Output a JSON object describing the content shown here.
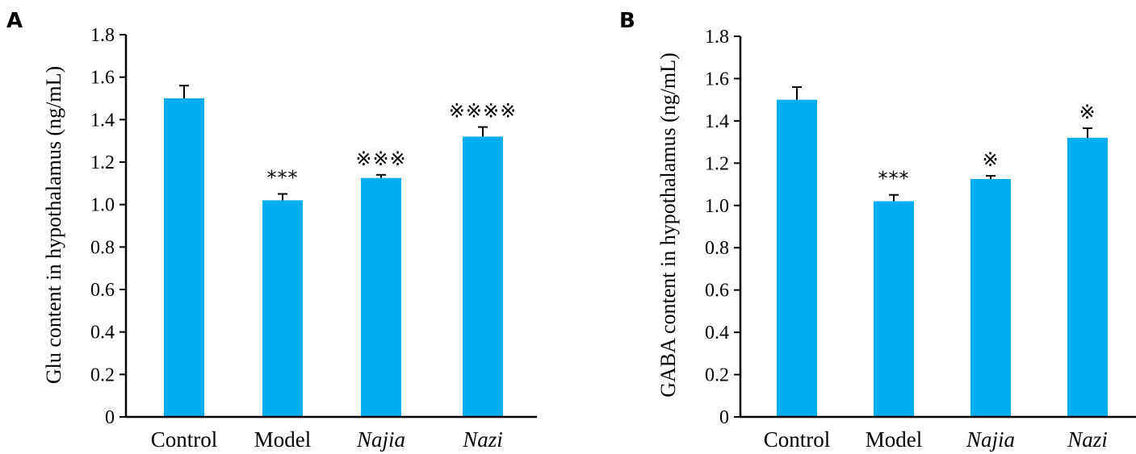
{
  "colors": {
    "bar": "#00AEEF",
    "axis": "#000000"
  },
  "chart_data": [
    {
      "panel_label": "A",
      "type": "bar",
      "categories": [
        "Control",
        "Model",
        "Najia",
        "Nazi"
      ],
      "italic_categories": [
        false,
        false,
        true,
        true
      ],
      "values": [
        1.5,
        1.02,
        1.125,
        1.32
      ],
      "errors": [
        0.06,
        0.03,
        0.015,
        0.045
      ],
      "annotations": [
        "",
        "***",
        "※※※",
        "※※※※"
      ],
      "xlabel": "",
      "ylabel": "Glu content in hypothalamus (ng/mL)",
      "ylim": [
        0,
        1.8
      ],
      "yticks": [
        "0",
        "0.2",
        "0.4",
        "0.6",
        "0.8",
        "1.0",
        "1.2",
        "1.4",
        "1.6",
        "1.8"
      ],
      "grid": false
    },
    {
      "panel_label": "B",
      "type": "bar",
      "categories": [
        "Control",
        "Model",
        "Najia",
        "Nazi"
      ],
      "italic_categories": [
        false,
        false,
        true,
        true
      ],
      "values": [
        1.5,
        1.02,
        1.125,
        1.32
      ],
      "errors": [
        0.06,
        0.03,
        0.015,
        0.045
      ],
      "annotations": [
        "",
        "***",
        "※",
        "※"
      ],
      "xlabel": "",
      "ylabel": "GABA content in hypothalamus (ng/mL)",
      "ylim": [
        0,
        1.8
      ],
      "yticks": [
        "0",
        "0.2",
        "0.4",
        "0.6",
        "0.8",
        "1.0",
        "1.2",
        "1.4",
        "1.6",
        "1.8"
      ],
      "grid": false
    }
  ]
}
